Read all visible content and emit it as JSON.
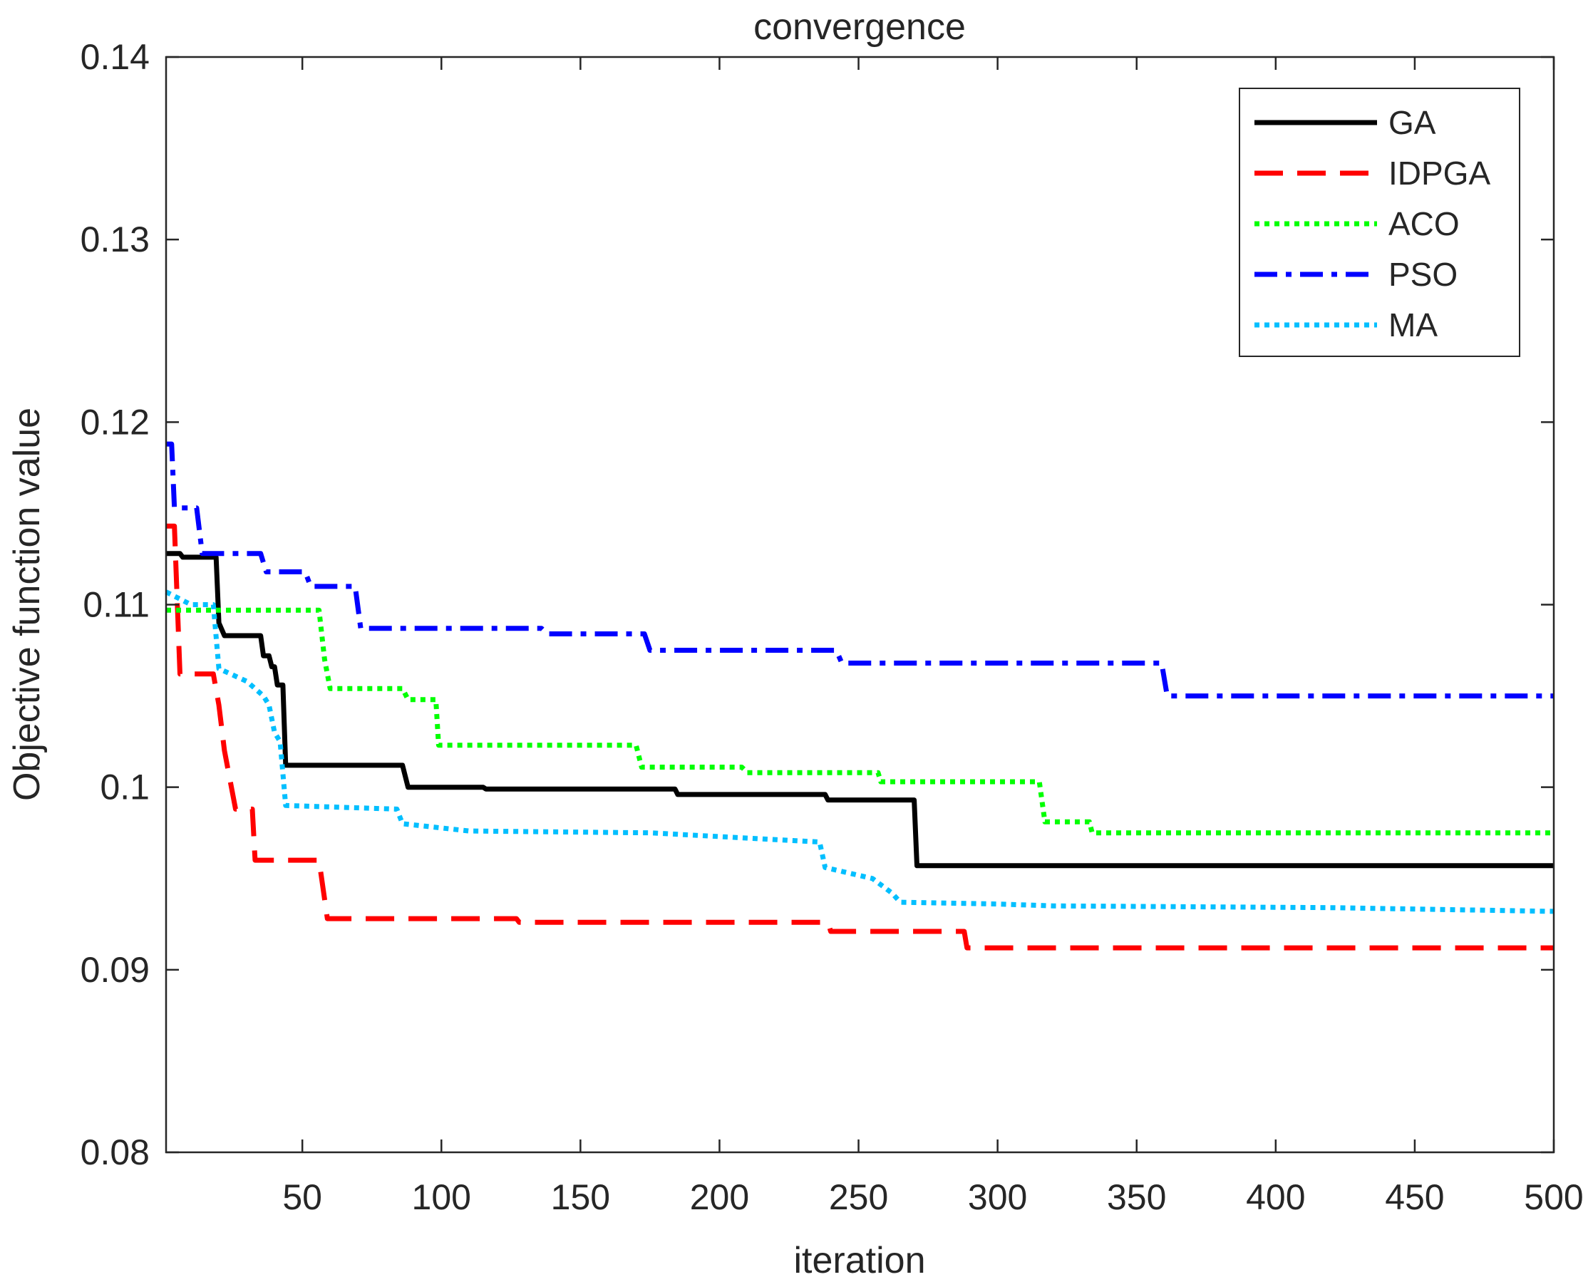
{
  "chart_data": {
    "type": "line",
    "title": "convergence",
    "xlabel": "iteration",
    "ylabel": "Objective function value",
    "xlim": [
      1,
      500
    ],
    "ylim": [
      0.08,
      0.14
    ],
    "xticks": [
      50,
      100,
      150,
      200,
      250,
      300,
      350,
      400,
      450,
      500
    ],
    "xtick_labels": [
      "50",
      "100",
      "150",
      "200",
      "250",
      "300",
      "350",
      "400",
      "450",
      "500"
    ],
    "yticks": [
      0.08,
      0.09,
      0.1,
      0.11,
      0.12,
      0.13,
      0.14
    ],
    "ytick_labels": [
      "0.08",
      "0.09",
      "0.1",
      "0.11",
      "0.12",
      "0.13",
      "0.14"
    ],
    "grid": false,
    "legend_position": "top-right",
    "series": [
      {
        "name": "GA",
        "color": "#000000",
        "style": "solid",
        "points": [
          [
            1,
            0.1128
          ],
          [
            6,
            0.1128
          ],
          [
            7,
            0.1126
          ],
          [
            19,
            0.1126
          ],
          [
            20,
            0.109
          ],
          [
            22,
            0.1083
          ],
          [
            35,
            0.1083
          ],
          [
            36,
            0.1072
          ],
          [
            38,
            0.1072
          ],
          [
            39,
            0.1066
          ],
          [
            40,
            0.1066
          ],
          [
            41,
            0.1056
          ],
          [
            43,
            0.1056
          ],
          [
            44,
            0.1012
          ],
          [
            86,
            0.1012
          ],
          [
            88,
            0.1
          ],
          [
            115,
            0.1
          ],
          [
            116,
            0.0999
          ],
          [
            184,
            0.0999
          ],
          [
            185,
            0.0996
          ],
          [
            238,
            0.0996
          ],
          [
            239,
            0.0993
          ],
          [
            270,
            0.0993
          ],
          [
            271,
            0.0957
          ],
          [
            500,
            0.0957
          ]
        ]
      },
      {
        "name": "IDPGA",
        "color": "#ff0000",
        "style": "dashed",
        "points": [
          [
            1,
            0.1143
          ],
          [
            4,
            0.1143
          ],
          [
            6,
            0.1062
          ],
          [
            18,
            0.1062
          ],
          [
            20,
            0.1045
          ],
          [
            22,
            0.102
          ],
          [
            26,
            0.0988
          ],
          [
            32,
            0.0988
          ],
          [
            33,
            0.096
          ],
          [
            56,
            0.096
          ],
          [
            59,
            0.0928
          ],
          [
            127,
            0.0928
          ],
          [
            128,
            0.0926
          ],
          [
            239,
            0.0926
          ],
          [
            240,
            0.0921
          ],
          [
            288,
            0.0921
          ],
          [
            289,
            0.0912
          ],
          [
            500,
            0.0912
          ]
        ]
      },
      {
        "name": "ACO",
        "color": "#00ff00",
        "style": "dotted",
        "points": [
          [
            1,
            0.1097
          ],
          [
            56,
            0.1097
          ],
          [
            58,
            0.107
          ],
          [
            60,
            0.1054
          ],
          [
            86,
            0.1054
          ],
          [
            88,
            0.1048
          ],
          [
            98,
            0.1048
          ],
          [
            99,
            0.1023
          ],
          [
            170,
            0.1023
          ],
          [
            172,
            0.1011
          ],
          [
            208,
            0.1011
          ],
          [
            210,
            0.1008
          ],
          [
            257,
            0.1008
          ],
          [
            258,
            0.1003
          ],
          [
            315,
            0.1003
          ],
          [
            317,
            0.0981
          ],
          [
            333,
            0.0981
          ],
          [
            334,
            0.0975
          ],
          [
            500,
            0.0975
          ]
        ]
      },
      {
        "name": "PSO",
        "color": "#0000ff",
        "style": "dashdot",
        "points": [
          [
            1,
            0.1188
          ],
          [
            3,
            0.1188
          ],
          [
            4,
            0.1153
          ],
          [
            12,
            0.1153
          ],
          [
            14,
            0.1128
          ],
          [
            35,
            0.1128
          ],
          [
            37,
            0.1118
          ],
          [
            51,
            0.1118
          ],
          [
            53,
            0.111
          ],
          [
            69,
            0.111
          ],
          [
            71,
            0.1087
          ],
          [
            136,
            0.1087
          ],
          [
            138,
            0.1084
          ],
          [
            173,
            0.1084
          ],
          [
            175,
            0.1075
          ],
          [
            242,
            0.1075
          ],
          [
            244,
            0.1068
          ],
          [
            359,
            0.1068
          ],
          [
            361,
            0.105
          ],
          [
            500,
            0.105
          ]
        ]
      },
      {
        "name": "MA",
        "color": "#00bfff",
        "style": "dotted",
        "points": [
          [
            1,
            0.1107
          ],
          [
            10,
            0.11
          ],
          [
            18,
            0.11
          ],
          [
            20,
            0.1065
          ],
          [
            30,
            0.1058
          ],
          [
            36,
            0.105
          ],
          [
            38,
            0.1045
          ],
          [
            40,
            0.103
          ],
          [
            42,
            0.1025
          ],
          [
            44,
            0.099
          ],
          [
            84,
            0.0988
          ],
          [
            86,
            0.098
          ],
          [
            110,
            0.0976
          ],
          [
            175,
            0.0975
          ],
          [
            236,
            0.097
          ],
          [
            238,
            0.0956
          ],
          [
            255,
            0.095
          ],
          [
            262,
            0.0942
          ],
          [
            265,
            0.0937
          ],
          [
            300,
            0.0936
          ],
          [
            320,
            0.0935
          ],
          [
            420,
            0.0934
          ],
          [
            500,
            0.0932
          ]
        ]
      }
    ]
  }
}
